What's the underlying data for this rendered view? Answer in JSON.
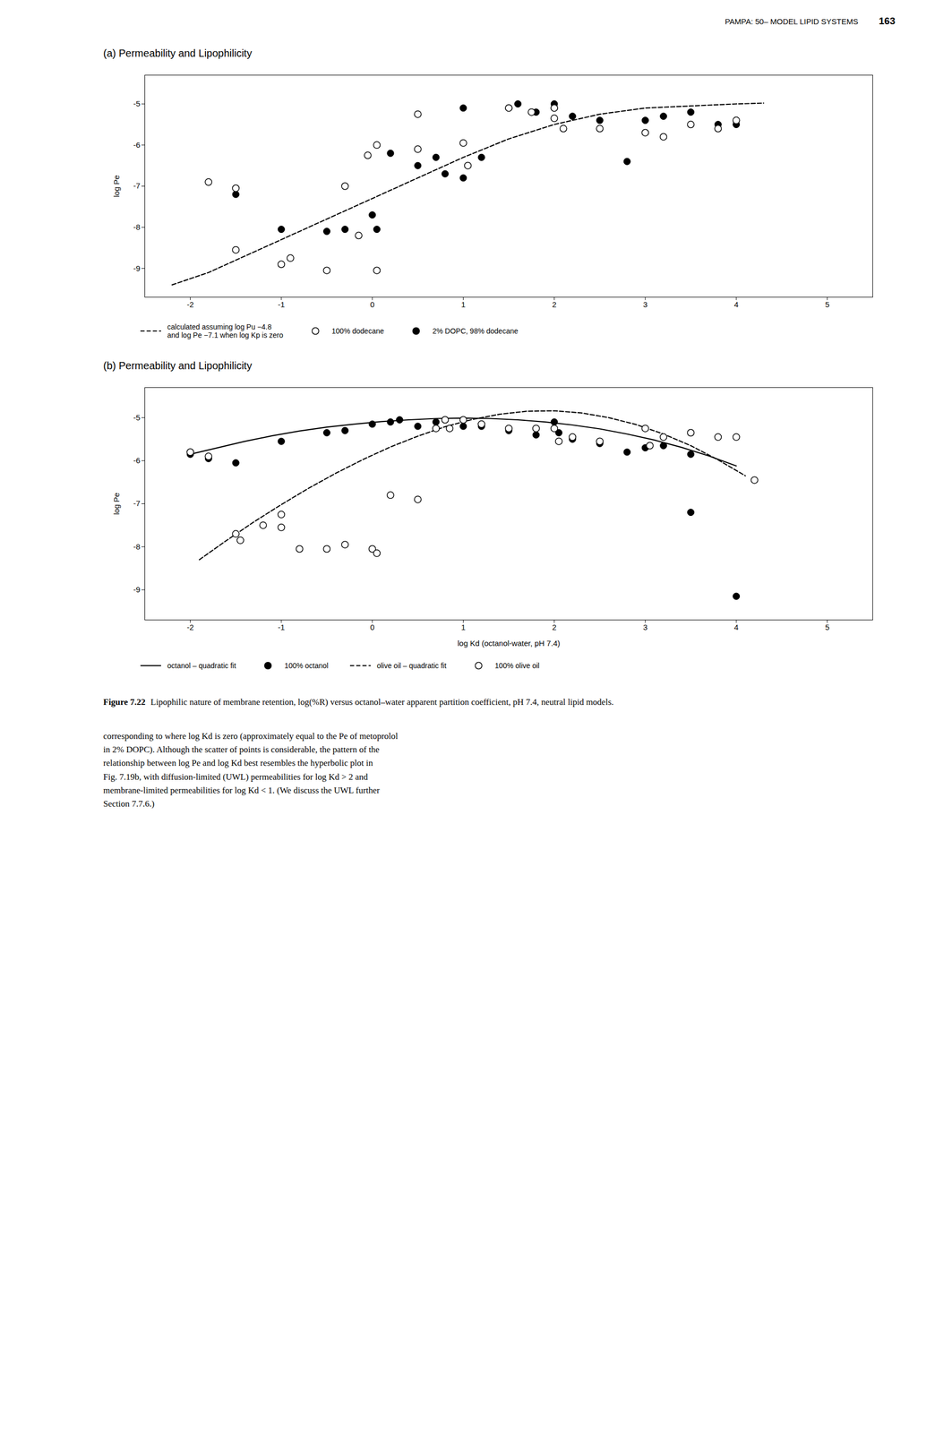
{
  "page_header": "PAMPA: 50– MODEL LIPID SYSTEMS",
  "page_number": "163",
  "caption": {
    "label": "Figure 7.22",
    "text": "Lipophilic nature of membrane retention, log(%R) versus octanol–water apparent partition coefficient, pH 7.4, neutral lipid models."
  },
  "body_text": [
    "corresponding to where log Kd is zero (approximately equal to the Pe of metoprolol",
    "in 2% DOPC). Although the scatter of points is considerable, the pattern of the",
    "relationship between log Pe and log Kd best resembles the hyperbolic plot in",
    "Fig. 7.19b, with diffusion-limited (UWL) permeabilities for log Kd > 2 and",
    "membrane-limited permeabilities for log Kd < 1. (We discuss the UWL further",
    "Section 7.7.6.)"
  ],
  "chart_data": [
    {
      "type": "scatter",
      "title": "(a) Permeability and Lipophilicity",
      "ylabel": "log Pe",
      "xlim": [
        -2.5,
        5.5
      ],
      "ylim": [
        -9.7,
        -4.3
      ],
      "xticks": [
        -2,
        -1,
        0,
        1,
        2,
        3,
        4,
        5
      ],
      "yticks": [
        -9,
        -8,
        -7,
        -6,
        -5
      ],
      "series": [
        {
          "name": "calculated assuming log Pu −4.8\nand log Pe −7.1 when log Kp is zero",
          "type": "line",
          "line_style": "dashed",
          "color": "black",
          "x": [
            -2.2,
            -1.8,
            -1.5,
            -1.0,
            -0.5,
            0.0,
            0.5,
            1.0,
            1.5,
            2.0,
            2.5,
            3.0,
            3.5,
            4.0,
            4.3
          ],
          "values": [
            -9.4,
            -9.1,
            -8.8,
            -8.3,
            -7.8,
            -7.3,
            -6.8,
            -6.3,
            -5.85,
            -5.5,
            -5.25,
            -5.1,
            -5.05,
            -5.0,
            -4.98
          ]
        },
        {
          "name": "100% dodecane",
          "type": "scatter",
          "marker": "circle-open",
          "color": "black",
          "x": [
            -1.8,
            -1.5,
            -1.5,
            -1.0,
            -0.9,
            -0.5,
            0.05,
            -0.3,
            -0.15,
            -0.05,
            0.05,
            0.5,
            0.5,
            1.0,
            1.05,
            1.5,
            1.75,
            2.0,
            2.0,
            2.1,
            2.5,
            3.0,
            3.2,
            3.5,
            3.8,
            4.0
          ],
          "values": [
            -6.9,
            -7.05,
            -8.55,
            -8.9,
            -8.75,
            -9.05,
            -9.05,
            -7.0,
            -8.2,
            -6.25,
            -6.0,
            -6.1,
            -5.25,
            -5.95,
            -6.5,
            -5.1,
            -5.2,
            -5.1,
            -5.35,
            -5.6,
            -5.6,
            -5.7,
            -5.8,
            -5.5,
            -5.6,
            -5.4
          ]
        },
        {
          "name": "2% DOPC, 98% dodecane",
          "type": "scatter",
          "marker": "circle-filled",
          "color": "black",
          "x": [
            -1.5,
            -1.0,
            -0.5,
            -0.3,
            0.0,
            0.05,
            0.2,
            0.5,
            0.7,
            0.8,
            1.0,
            1.0,
            1.2,
            1.5,
            1.6,
            1.8,
            2.0,
            2.0,
            2.2,
            2.5,
            2.8,
            3.0,
            3.2,
            3.5,
            3.8,
            4.0
          ],
          "values": [
            -7.2,
            -8.05,
            -8.1,
            -8.05,
            -7.7,
            -8.05,
            -6.2,
            -6.5,
            -6.3,
            -6.7,
            -6.8,
            -5.1,
            -6.3,
            -5.1,
            -5.0,
            -5.2,
            -5.1,
            -5.0,
            -5.3,
            -5.4,
            -6.4,
            -5.4,
            -5.3,
            -5.2,
            -5.5,
            -5.5
          ]
        }
      ]
    },
    {
      "type": "scatter",
      "title": "(b) Permeability and Lipophilicity",
      "xlabel": "log Kd (octanol-water, pH 7.4)",
      "ylabel": "log Pe",
      "xlim": [
        -2.5,
        5.5
      ],
      "ylim": [
        -9.7,
        -4.3
      ],
      "xticks": [
        -2,
        -1,
        0,
        1,
        2,
        3,
        4,
        5
      ],
      "yticks": [
        -9,
        -8,
        -7,
        -6,
        -5
      ],
      "series": [
        {
          "name": "octanol – quadratic fit",
          "type": "line",
          "line_style": "solid",
          "color": "black",
          "x": [
            -2.0,
            -1.7,
            -1.4,
            -1.1,
            -0.8,
            -0.5,
            -0.2,
            0.1,
            0.4,
            0.7,
            1.0,
            1.3,
            1.6,
            1.9,
            2.2,
            2.5,
            2.8,
            3.1,
            3.4,
            3.7,
            4.0
          ],
          "values": [
            -5.85,
            -5.7,
            -5.55,
            -5.42,
            -5.31,
            -5.22,
            -5.15,
            -5.09,
            -5.05,
            -5.02,
            -5.01,
            -5.02,
            -5.05,
            -5.1,
            -5.17,
            -5.26,
            -5.38,
            -5.52,
            -5.69,
            -5.89,
            -6.12
          ]
        },
        {
          "name": "100% octanol",
          "type": "scatter",
          "marker": "circle-filled",
          "color": "black",
          "x": [
            -2.0,
            -1.8,
            -1.5,
            -1.0,
            -0.5,
            -0.3,
            0.0,
            0.2,
            0.3,
            0.5,
            0.7,
            1.0,
            1.2,
            1.5,
            1.8,
            2.0,
            2.05,
            2.2,
            2.5,
            2.8,
            3.0,
            3.2,
            3.5,
            3.5,
            4.0
          ],
          "values": [
            -5.85,
            -5.95,
            -6.05,
            -5.55,
            -5.35,
            -5.3,
            -5.15,
            -5.1,
            -5.05,
            -5.2,
            -5.1,
            -5.2,
            -5.2,
            -5.3,
            -5.4,
            -5.1,
            -5.35,
            -5.5,
            -5.6,
            -5.8,
            -5.7,
            -5.65,
            -5.85,
            -7.2,
            -9.15
          ]
        },
        {
          "name": "olive oil – quadratic fit",
          "type": "line",
          "line_style": "dashed",
          "color": "black",
          "x": [
            -1.9,
            -1.6,
            -1.3,
            -1.0,
            -0.7,
            -0.4,
            -0.1,
            0.2,
            0.5,
            0.8,
            1.1,
            1.4,
            1.7,
            2.0,
            2.3,
            2.6,
            2.9,
            3.2,
            3.5,
            3.8,
            4.1
          ],
          "values": [
            -8.3,
            -7.85,
            -7.42,
            -7.02,
            -6.64,
            -6.29,
            -5.97,
            -5.68,
            -5.43,
            -5.21,
            -5.04,
            -4.92,
            -4.85,
            -4.84,
            -4.89,
            -5.0,
            -5.16,
            -5.38,
            -5.65,
            -5.98,
            -6.35
          ]
        },
        {
          "name": "100% olive oil",
          "type": "scatter",
          "marker": "circle-open",
          "color": "black",
          "x": [
            -2.0,
            -1.8,
            -1.5,
            -1.45,
            -1.2,
            -1.0,
            -1.0,
            -0.8,
            -0.5,
            -0.3,
            0.0,
            0.05,
            0.2,
            0.5,
            0.7,
            0.8,
            0.85,
            1.0,
            1.2,
            1.5,
            1.8,
            2.0,
            2.05,
            2.2,
            2.5,
            3.0,
            3.05,
            3.2,
            3.5,
            3.8,
            4.0,
            4.2
          ],
          "values": [
            -5.8,
            -5.9,
            -7.7,
            -7.85,
            -7.5,
            -7.25,
            -7.55,
            -8.05,
            -8.05,
            -7.95,
            -8.05,
            -8.15,
            -6.8,
            -6.9,
            -5.25,
            -5.05,
            -5.25,
            -5.05,
            -5.15,
            -5.25,
            -5.25,
            -5.25,
            -5.55,
            -5.45,
            -5.55,
            -5.25,
            -5.65,
            -5.45,
            -5.35,
            -5.45,
            -5.45,
            -6.45
          ]
        }
      ]
    }
  ]
}
